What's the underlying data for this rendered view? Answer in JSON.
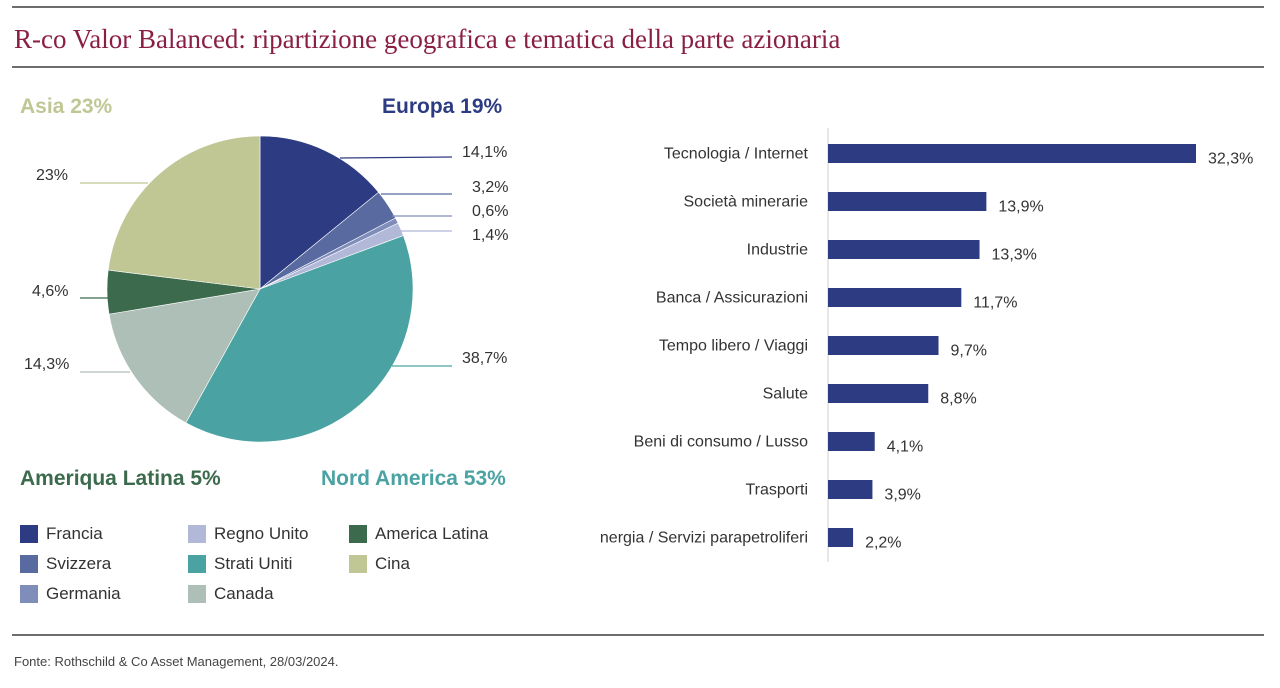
{
  "title": "R-co Valor Balanced: ripartizione geografica e tematica della parte azionaria",
  "source": "Fonte: Rothschild & Co Asset Management, 28/03/2024.",
  "colors": {
    "title": "#8a1f45",
    "francia": "#2d3c82",
    "svizzera": "#586aa0",
    "germania": "#7f8dba",
    "regno_unito": "#b2b8d8",
    "stati_uniti": "#4aa3a2",
    "canada": "#aebfb7",
    "america_latina": "#3b6a4d",
    "cina": "#c0c795",
    "bar": "#2d3c82"
  },
  "regions": {
    "asia": "Asia 23%",
    "europa": "Europa 19%",
    "america_latina": "Ameriqua Latina 5%",
    "nord_america": "Nord America 53%"
  },
  "legend": [
    {
      "label": "Francia",
      "color": "#2d3c82"
    },
    {
      "label": "Svizzera",
      "color": "#586aa0"
    },
    {
      "label": "Germania",
      "color": "#7f8dba"
    },
    {
      "label": "Regno Unito",
      "color": "#b2b8d8"
    },
    {
      "label": "Strati Uniti",
      "color": "#4aa3a2"
    },
    {
      "label": "Canada",
      "color": "#aebfb7"
    },
    {
      "label": "America Latina",
      "color": "#3b6a4d"
    },
    {
      "label": "Cina",
      "color": "#c0c795"
    }
  ],
  "chart_data": [
    {
      "type": "pie",
      "slices": [
        {
          "name": "Francia",
          "value": 14.1,
          "label": "14,1%",
          "color": "#2d3c82"
        },
        {
          "name": "Svizzera",
          "value": 3.2,
          "label": "3,2%",
          "color": "#586aa0"
        },
        {
          "name": "Germania",
          "value": 0.6,
          "label": "0,6%",
          "color": "#7f8dba"
        },
        {
          "name": "Regno Unito",
          "value": 1.4,
          "label": "1,4%",
          "color": "#b2b8d8"
        },
        {
          "name": "Strati Uniti",
          "value": 38.7,
          "label": "38,7%",
          "color": "#4aa3a2"
        },
        {
          "name": "Canada",
          "value": 14.3,
          "label": "14,3%",
          "color": "#aebfb7"
        },
        {
          "name": "America Latina",
          "value": 4.6,
          "label": "4,6%",
          "color": "#3b6a4d"
        },
        {
          "name": "Cina",
          "value": 23,
          "label": "23%",
          "color": "#c0c795"
        }
      ]
    },
    {
      "type": "bar",
      "orientation": "horizontal",
      "categories": [
        "Tecnologia / Internet",
        "Società minerarie",
        "Industrie",
        "Banca / Assicurazioni",
        "Tempo libero / Viaggi",
        "Salute",
        "Beni di consumo / Lusso",
        "Trasporti",
        "Energia / Servizi parapetroliferi"
      ],
      "values": [
        32.3,
        13.9,
        13.3,
        11.7,
        9.7,
        8.8,
        4.1,
        3.9,
        2.2
      ],
      "value_labels": [
        "32,3%",
        "13,9%",
        "13,3%",
        "11,7%",
        "9,7%",
        "8,8%",
        "4,1%",
        "3,9%",
        "2,2%"
      ],
      "xlim": [
        0,
        32.3
      ]
    }
  ]
}
